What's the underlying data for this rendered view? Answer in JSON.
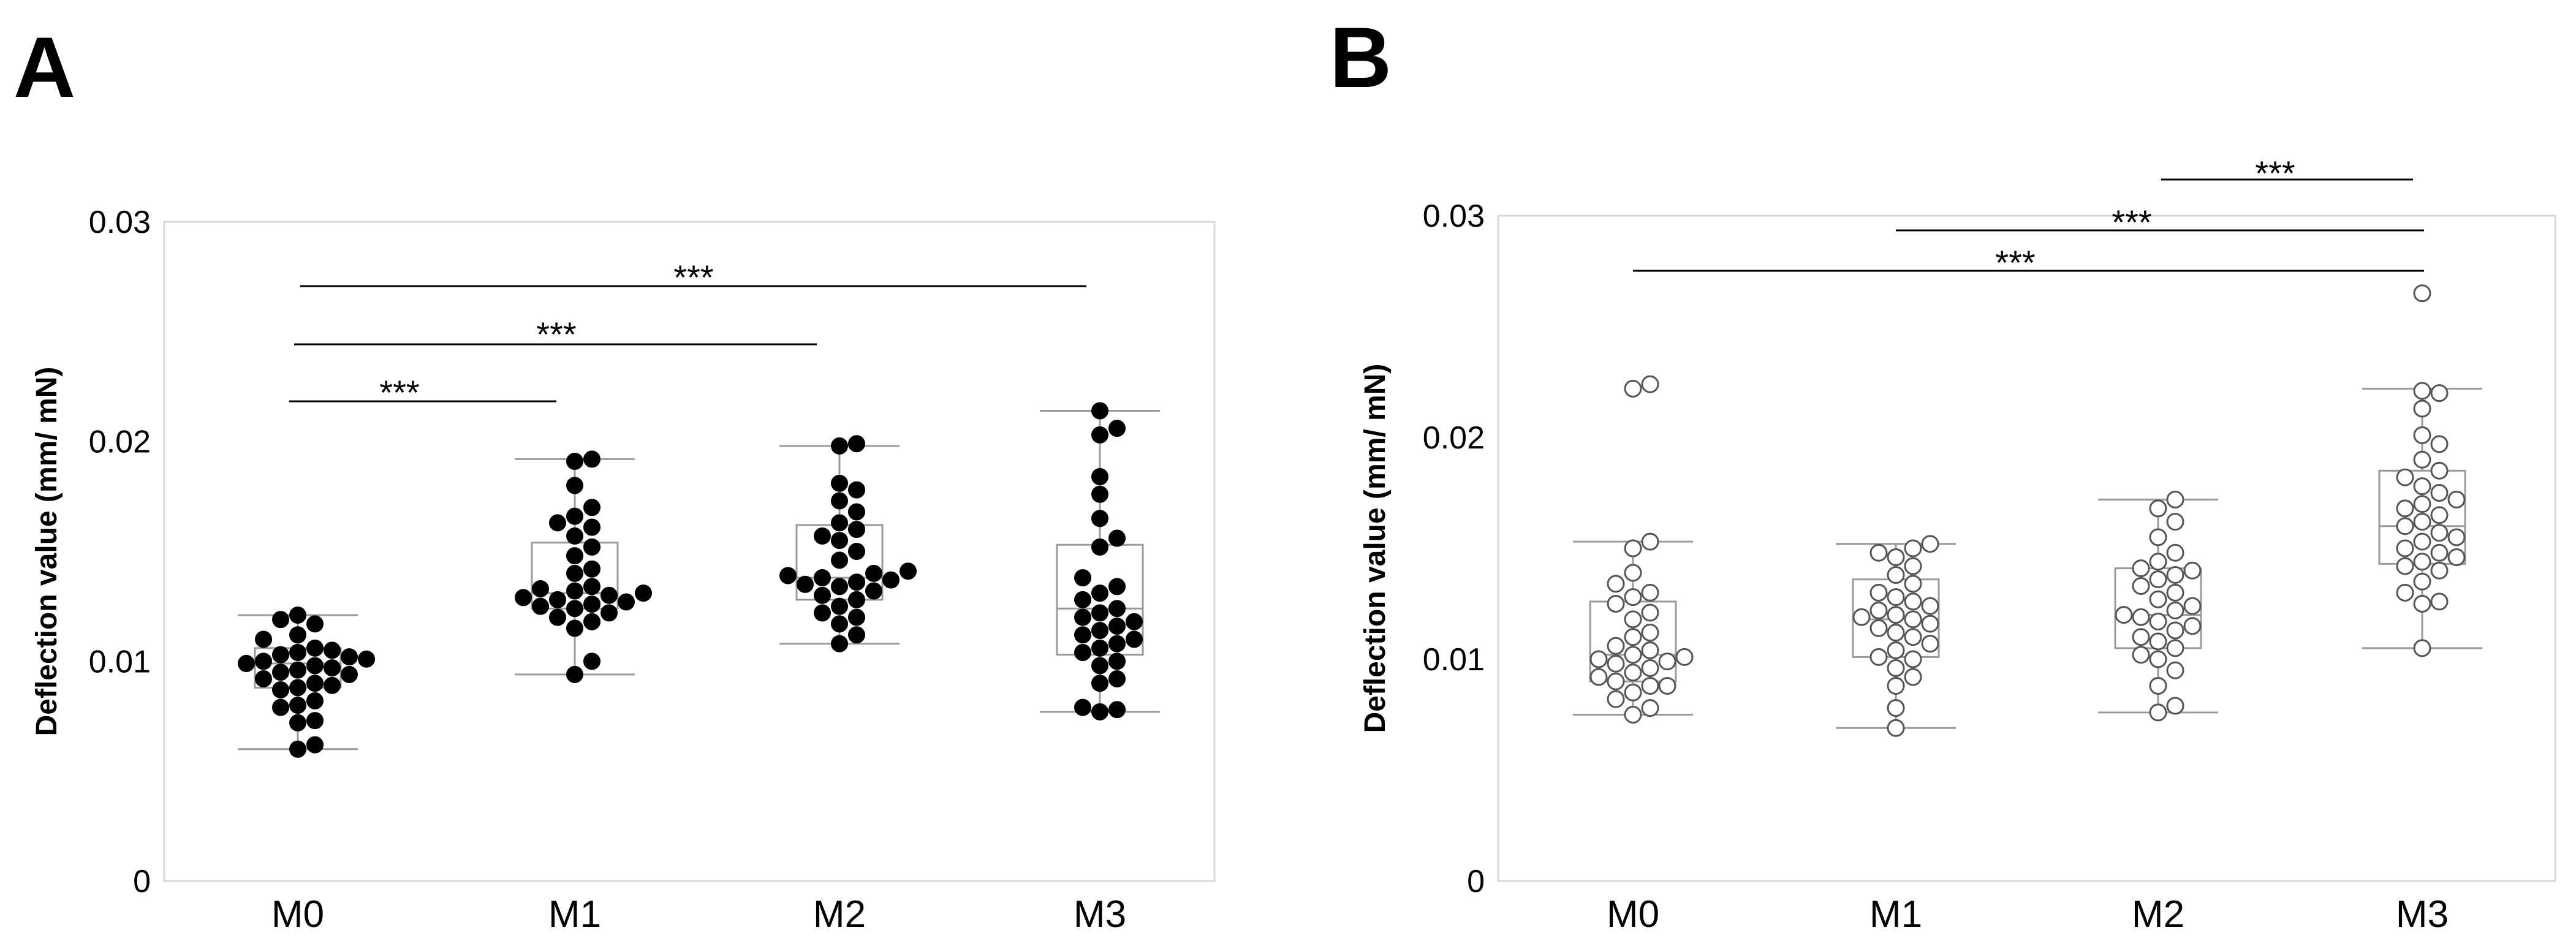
{
  "chart_data": [
    {
      "type": "box-swarm",
      "panel": "A",
      "marker": "filled",
      "ylabel": "Deflection value (mm/ mN)",
      "xlabel": "",
      "ylim": [
        0,
        0.03
      ],
      "yticks": [
        0,
        0.01,
        0.02,
        0.03
      ],
      "ytick_labels": [
        "0",
        "0.01",
        "0.02",
        "0.03"
      ],
      "categories": [
        "M0",
        "M1",
        "M2",
        "M3"
      ],
      "boxes": [
        {
          "min": 0.006,
          "q1": 0.0088,
          "median": 0.0099,
          "q3": 0.0106,
          "max": 0.0121
        },
        {
          "min": 0.0094,
          "q1": 0.0124,
          "median": 0.0131,
          "q3": 0.0154,
          "max": 0.0192
        },
        {
          "min": 0.0108,
          "q1": 0.0128,
          "median": 0.0138,
          "q3": 0.0162,
          "max": 0.0198
        },
        {
          "min": 0.0077,
          "q1": 0.0103,
          "median": 0.0124,
          "q3": 0.0153,
          "max": 0.0214
        }
      ],
      "points": [
        [
          0.006,
          0.0062,
          0.0072,
          0.0073,
          0.0079,
          0.008,
          0.0082,
          0.0087,
          0.0088,
          0.0089,
          0.009,
          0.0092,
          0.0094,
          0.0095,
          0.0096,
          0.0097,
          0.0098,
          0.0099,
          0.01,
          0.0101,
          0.0102,
          0.0103,
          0.0104,
          0.0105,
          0.0106,
          0.011,
          0.0112,
          0.0117,
          0.0119,
          0.0121
        ],
        [
          0.0094,
          0.01,
          0.0115,
          0.0118,
          0.012,
          0.0122,
          0.0124,
          0.0125,
          0.0126,
          0.0127,
          0.0128,
          0.0129,
          0.013,
          0.0131,
          0.0132,
          0.0133,
          0.0134,
          0.014,
          0.0142,
          0.0148,
          0.0152,
          0.0157,
          0.0161,
          0.0163,
          0.0166,
          0.017,
          0.018,
          0.0191,
          0.0192
        ],
        [
          0.0108,
          0.0112,
          0.0117,
          0.012,
          0.0122,
          0.0125,
          0.0128,
          0.013,
          0.0132,
          0.0134,
          0.0135,
          0.0136,
          0.0137,
          0.0138,
          0.0139,
          0.014,
          0.0141,
          0.0146,
          0.015,
          0.0155,
          0.0157,
          0.016,
          0.0163,
          0.0168,
          0.0173,
          0.0178,
          0.0181,
          0.0198,
          0.0199
        ],
        [
          0.0077,
          0.0078,
          0.0079,
          0.009,
          0.0092,
          0.0098,
          0.01,
          0.0104,
          0.0106,
          0.0108,
          0.011,
          0.0112,
          0.0114,
          0.0116,
          0.0118,
          0.012,
          0.0122,
          0.0124,
          0.0128,
          0.0131,
          0.0134,
          0.0138,
          0.0152,
          0.0156,
          0.0165,
          0.0176,
          0.0184,
          0.0203,
          0.0206,
          0.0214
        ]
      ],
      "significance": [
        {
          "from": "M0",
          "to": "M1",
          "label": "***"
        },
        {
          "from": "M0",
          "to": "M2",
          "label": "***"
        },
        {
          "from": "M0",
          "to": "M3",
          "label": "***"
        }
      ]
    },
    {
      "type": "box-swarm",
      "panel": "B",
      "marker": "open",
      "ylabel": "Deflection value (mm/ mN)",
      "xlabel": "",
      "ylim": [
        0,
        0.03
      ],
      "yticks": [
        0,
        0.01,
        0.02,
        0.03
      ],
      "ytick_labels": [
        "0",
        "0.01",
        "0.02",
        "0.03"
      ],
      "categories": [
        "M0",
        "M1",
        "M2",
        "M3"
      ],
      "boxes": [
        {
          "min": 0.0075,
          "q1": 0.009,
          "median": 0.0102,
          "q3": 0.0126,
          "max": 0.0153
        },
        {
          "min": 0.0069,
          "q1": 0.0101,
          "median": 0.0118,
          "q3": 0.0136,
          "max": 0.0152
        },
        {
          "min": 0.0076,
          "q1": 0.0105,
          "median": 0.012,
          "q3": 0.0141,
          "max": 0.0172
        },
        {
          "min": 0.0105,
          "q1": 0.0143,
          "median": 0.016,
          "q3": 0.0185,
          "max": 0.0222
        }
      ],
      "points": [
        [
          0.0075,
          0.0078,
          0.0082,
          0.0085,
          0.0088,
          0.0088,
          0.009,
          0.0092,
          0.0094,
          0.0096,
          0.0098,
          0.0099,
          0.01,
          0.0101,
          0.0102,
          0.0104,
          0.0106,
          0.011,
          0.0112,
          0.0118,
          0.0121,
          0.0125,
          0.0128,
          0.013,
          0.0134,
          0.0139,
          0.015,
          0.0153,
          0.0222,
          0.0224
        ],
        [
          0.0069,
          0.0078,
          0.0088,
          0.0092,
          0.0096,
          0.01,
          0.0101,
          0.0104,
          0.0107,
          0.011,
          0.0112,
          0.0114,
          0.0116,
          0.0118,
          0.0119,
          0.012,
          0.0122,
          0.0124,
          0.0126,
          0.0128,
          0.013,
          0.0134,
          0.0138,
          0.0142,
          0.0146,
          0.0148,
          0.015,
          0.0152
        ],
        [
          0.0076,
          0.0079,
          0.0088,
          0.0095,
          0.01,
          0.0102,
          0.0105,
          0.0108,
          0.011,
          0.0113,
          0.0115,
          0.0117,
          0.0119,
          0.012,
          0.0122,
          0.0124,
          0.0127,
          0.013,
          0.0133,
          0.0136,
          0.0138,
          0.014,
          0.0141,
          0.0144,
          0.0148,
          0.0155,
          0.0162,
          0.0168,
          0.0172
        ],
        [
          0.0105,
          0.0125,
          0.0126,
          0.013,
          0.0135,
          0.014,
          0.0142,
          0.0144,
          0.0146,
          0.0148,
          0.015,
          0.0153,
          0.0155,
          0.0157,
          0.016,
          0.0162,
          0.0165,
          0.0168,
          0.017,
          0.0172,
          0.0175,
          0.0178,
          0.0182,
          0.0185,
          0.019,
          0.0197,
          0.0201,
          0.0213,
          0.022,
          0.0221,
          0.0265
        ]
      ],
      "significance": [
        {
          "from": "M2",
          "to": "M3",
          "label": "***"
        },
        {
          "from": "M1",
          "to": "M3",
          "label": "***"
        },
        {
          "from": "M0",
          "to": "M3",
          "label": "***"
        }
      ]
    }
  ]
}
